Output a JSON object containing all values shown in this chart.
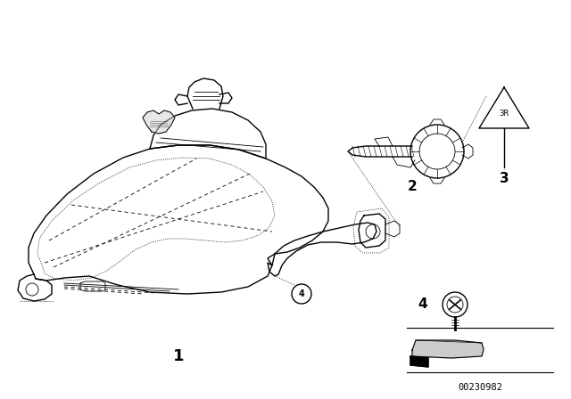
{
  "bg_color": "#ffffff",
  "diagram_id": "00230982",
  "lw_main": 1.0,
  "lw_thin": 0.6,
  "color": "#000000"
}
